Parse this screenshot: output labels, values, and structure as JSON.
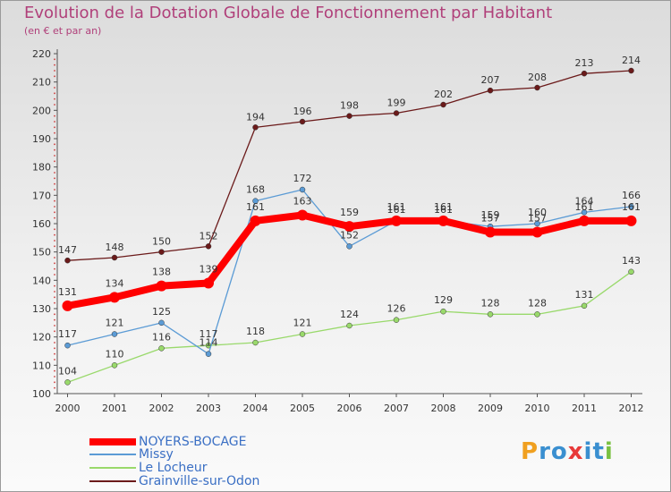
{
  "chart_data": {
    "type": "line",
    "title": "Evolution de la Dotation Globale de Fonctionnement par Habitant",
    "subtitle": "(en € et par an)",
    "categories": [
      "2000",
      "2001",
      "2002",
      "2003",
      "2004",
      "2005",
      "2006",
      "2007",
      "2008",
      "2009",
      "2010",
      "2011",
      "2012"
    ],
    "ylim": [
      100,
      220
    ],
    "yticks": [
      100,
      110,
      120,
      130,
      140,
      150,
      160,
      170,
      180,
      190,
      200,
      210,
      220
    ],
    "grid": false,
    "legend_position": "bottom-left",
    "series": [
      {
        "name": "Grainville-sur-Odon",
        "color": "#6b1a1a",
        "values": [
          147,
          148,
          150,
          152,
          194,
          196,
          198,
          199,
          202,
          207,
          208,
          213,
          214
        ]
      },
      {
        "name": "Le Locheur",
        "color": "#99d96b",
        "values": [
          104,
          110,
          116,
          117,
          118,
          121,
          124,
          126,
          129,
          128,
          128,
          131,
          143
        ]
      },
      {
        "name": "Missy",
        "color": "#5b9bd5",
        "values": [
          117,
          121,
          125,
          114,
          168,
          172,
          152,
          161,
          161,
          159,
          160,
          164,
          166
        ]
      },
      {
        "name": "NOYERS-BOCAGE",
        "color": "#ff0000",
        "values": [
          131,
          134,
          138,
          139,
          161,
          163,
          159,
          161,
          161,
          157,
          157,
          161,
          161
        ]
      }
    ]
  },
  "legend": [
    {
      "name": "NOYERS-BOCAGE",
      "color": "#ff0000"
    },
    {
      "name": "Missy",
      "color": "#5b9bd5"
    },
    {
      "name": "Le Locheur",
      "color": "#99d96b"
    },
    {
      "name": "Grainville-sur-Odon",
      "color": "#6b1a1a"
    }
  ],
  "logo": {
    "letters": [
      "P",
      "r",
      "o",
      "x",
      "i",
      "t",
      "i"
    ],
    "colors": [
      "#f0a020",
      "#3a8fd0",
      "#3a8fd0",
      "#e83a3a",
      "#3a8fd0",
      "#3a8fd0",
      "#7ac142"
    ]
  }
}
